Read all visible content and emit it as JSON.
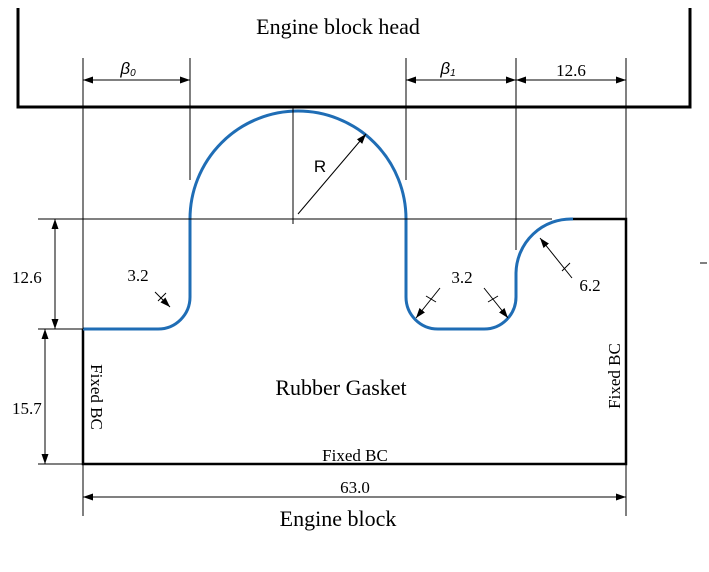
{
  "labels": {
    "head": "Engine block head",
    "block": "Engine block",
    "gasket": "Rubber Gasket"
  },
  "boundary_conditions": {
    "left": "Fixed BC",
    "bottom": "Fixed BC",
    "right": "Fixed BC"
  },
  "dimensions": {
    "beta0": "β",
    "beta0_sub": "0",
    "beta1": "β",
    "beta1_sub": "1",
    "top_right_width": "12.6",
    "step_height": "12.6",
    "base_height": "15.7",
    "total_width": "63.0",
    "radius": "R",
    "fillet_left": "3.2",
    "fillet_mid": "3.2",
    "fillet_right": "6.2"
  },
  "colors": {
    "gasket_edge": "#1f6db5",
    "line": "#000000"
  }
}
